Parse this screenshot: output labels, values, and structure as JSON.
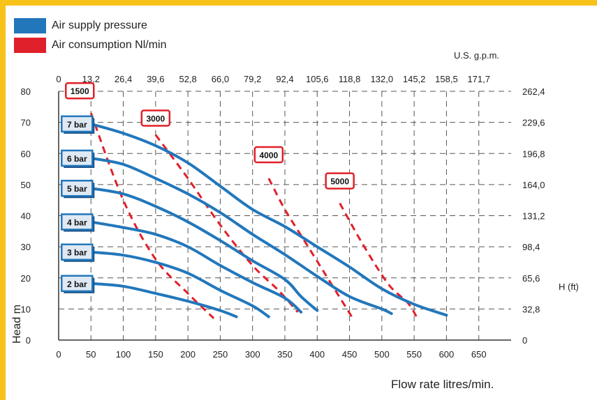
{
  "legend": {
    "pressure_label": "Air supply pressure",
    "pressure_color": "#2277bb",
    "consumption_label": "Air consumption Nl/min",
    "consumption_color": "#e0202a"
  },
  "labels": {
    "top_unit": "U.S. g.p.m.",
    "right_unit": "H (ft)",
    "left_axis": "Head m",
    "bottom_axis": "Flow rate litres/min."
  },
  "chart_data": {
    "type": "line",
    "x_ticks": [
      "0",
      "50",
      "100",
      "150",
      "200",
      "250",
      "300",
      "350",
      "400",
      "450",
      "500",
      "550",
      "600",
      "650"
    ],
    "x_top_ticks": [
      "0",
      "13,2",
      "26,4",
      "39,6",
      "52,8",
      "66,0",
      "79,2",
      "92,4",
      "105,6",
      "118,8",
      "132,0",
      "145,2",
      "158,5",
      "171,7"
    ],
    "y_ticks": [
      "0",
      "10",
      "20",
      "30",
      "40",
      "50",
      "60",
      "70",
      "80"
    ],
    "y_right_ticks": [
      "0",
      "32,8",
      "65,6",
      "98,4",
      "131,2",
      "164,0",
      "196,8",
      "229,6",
      "262,4"
    ],
    "xlim": [
      0,
      700
    ],
    "ylim": [
      0,
      80
    ],
    "grid": true,
    "pressure_series": [
      {
        "name": "7 bar",
        "points": [
          [
            50,
            69.5
          ],
          [
            100,
            66.5
          ],
          [
            150,
            62.5
          ],
          [
            200,
            57
          ],
          [
            250,
            49.5
          ],
          [
            300,
            42
          ],
          [
            350,
            36.5
          ],
          [
            400,
            30
          ],
          [
            450,
            23.5
          ],
          [
            500,
            16.5
          ],
          [
            550,
            11.5
          ],
          [
            600,
            8
          ]
        ]
      },
      {
        "name": "6 bar",
        "points": [
          [
            50,
            58.5
          ],
          [
            100,
            56.5
          ],
          [
            150,
            52
          ],
          [
            200,
            47
          ],
          [
            250,
            41
          ],
          [
            300,
            34
          ],
          [
            350,
            27.5
          ],
          [
            400,
            20.5
          ],
          [
            450,
            14
          ],
          [
            500,
            10
          ],
          [
            515,
            8.5
          ]
        ]
      },
      {
        "name": "5 bar",
        "points": [
          [
            50,
            48.8
          ],
          [
            100,
            47
          ],
          [
            150,
            43
          ],
          [
            200,
            38
          ],
          [
            250,
            32
          ],
          [
            300,
            25.5
          ],
          [
            350,
            19.5
          ],
          [
            375,
            14
          ],
          [
            400,
            9.5
          ]
        ]
      },
      {
        "name": "4 bar",
        "points": [
          [
            50,
            38
          ],
          [
            100,
            36.2
          ],
          [
            150,
            34
          ],
          [
            200,
            30
          ],
          [
            250,
            24
          ],
          [
            300,
            18.5
          ],
          [
            350,
            13.5
          ],
          [
            375,
            9
          ]
        ]
      },
      {
        "name": "3 bar",
        "points": [
          [
            50,
            28.3
          ],
          [
            100,
            27.3
          ],
          [
            150,
            25
          ],
          [
            200,
            21.5
          ],
          [
            250,
            16
          ],
          [
            300,
            11
          ],
          [
            325,
            7.5
          ]
        ]
      },
      {
        "name": "2 bar",
        "points": [
          [
            50,
            18.2
          ],
          [
            100,
            17.3
          ],
          [
            150,
            15
          ],
          [
            200,
            12.5
          ],
          [
            250,
            9.5
          ],
          [
            275,
            7.5
          ]
        ]
      }
    ],
    "consumption_series": [
      {
        "name": "1500",
        "points": [
          [
            50,
            73
          ],
          [
            100,
            45
          ],
          [
            150,
            26
          ],
          [
            200,
            15
          ],
          [
            240,
            7
          ]
        ]
      },
      {
        "name": "3000",
        "points": [
          [
            150,
            66
          ],
          [
            200,
            52
          ],
          [
            250,
            37
          ],
          [
            300,
            24
          ],
          [
            340,
            16
          ],
          [
            370,
            9
          ]
        ]
      },
      {
        "name": "4000",
        "points": [
          [
            325,
            52
          ],
          [
            350,
            42
          ],
          [
            380,
            32
          ],
          [
            410,
            22
          ],
          [
            440,
            12
          ],
          [
            455,
            7
          ]
        ]
      },
      {
        "name": "5000",
        "points": [
          [
            435,
            44
          ],
          [
            470,
            31
          ],
          [
            510,
            18
          ],
          [
            540,
            12
          ],
          [
            555,
            7
          ]
        ]
      }
    ]
  }
}
